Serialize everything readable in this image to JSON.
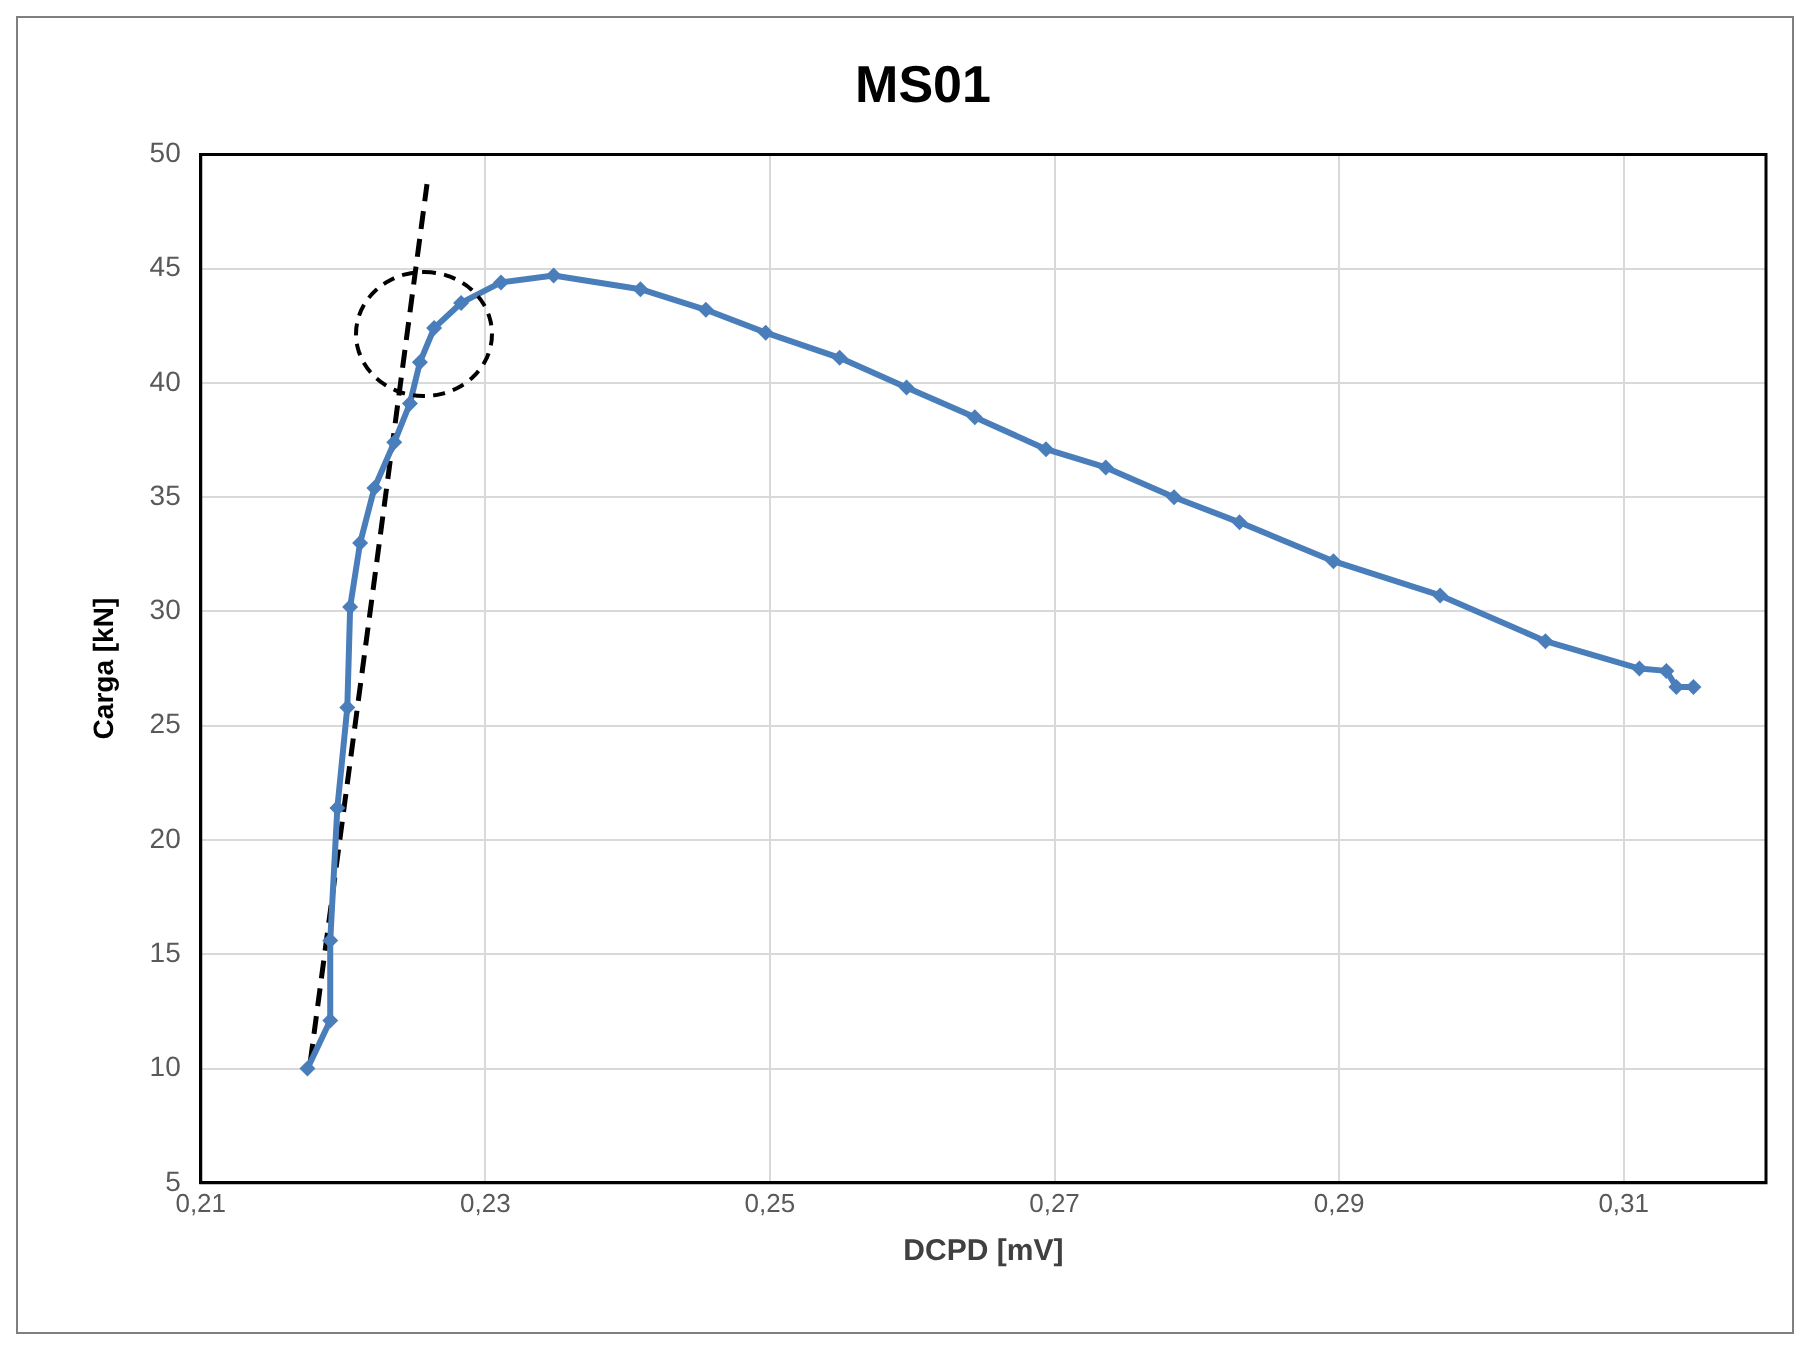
{
  "chart_data": {
    "type": "line",
    "title": "MS01",
    "xlabel": "DCPD [mV]",
    "ylabel": "Carga [kN]",
    "xlim": [
      0.21,
      0.32
    ],
    "xticks": [
      {
        "value": 0.21,
        "label": "0,21"
      },
      {
        "value": 0.23,
        "label": "0,23"
      },
      {
        "value": 0.25,
        "label": "0,25"
      },
      {
        "value": 0.27,
        "label": "0,27"
      },
      {
        "value": 0.29,
        "label": "0,29"
      },
      {
        "value": 0.31,
        "label": "0,31"
      }
    ],
    "ylim": [
      5,
      50
    ],
    "yticks": [
      5,
      10,
      15,
      20,
      25,
      30,
      35,
      40,
      45,
      50
    ],
    "grid": true,
    "legend": false,
    "series": [
      {
        "type": "line",
        "color": "#4a7ebb",
        "marker": "diamond",
        "x": [
          0.2175,
          0.2191,
          0.2191,
          0.2196,
          0.2203,
          0.2205,
          0.2212,
          0.2222,
          0.2236,
          0.2247,
          0.2254,
          0.2264,
          0.2283,
          0.2311,
          0.2348,
          0.2409,
          0.2455,
          0.2497,
          0.2549,
          0.2596,
          0.2644,
          0.2694,
          0.2736,
          0.2784,
          0.283,
          0.2896,
          0.2971,
          0.3045,
          0.3111,
          0.313,
          0.3137,
          0.3149
        ],
        "values": [
          10,
          12.1,
          15.6,
          21.4,
          25.8,
          30.2,
          33,
          35.4,
          37.4,
          39.1,
          40.9,
          42.4,
          43.5,
          44.4,
          44.7,
          44.1,
          43.2,
          42.2,
          41.1,
          39.8,
          38.5,
          37.1,
          36.3,
          35,
          33.9,
          32.2,
          30.7,
          28.7,
          27.5,
          27.4,
          26.7,
          26.7
        ]
      },
      {
        "type": "line",
        "color": "#000000",
        "marker": "none",
        "line_style": "dashed",
        "x": [
          0.2177,
          0.2259
        ],
        "values": [
          10.3,
          48.7
        ]
      }
    ]
  }
}
